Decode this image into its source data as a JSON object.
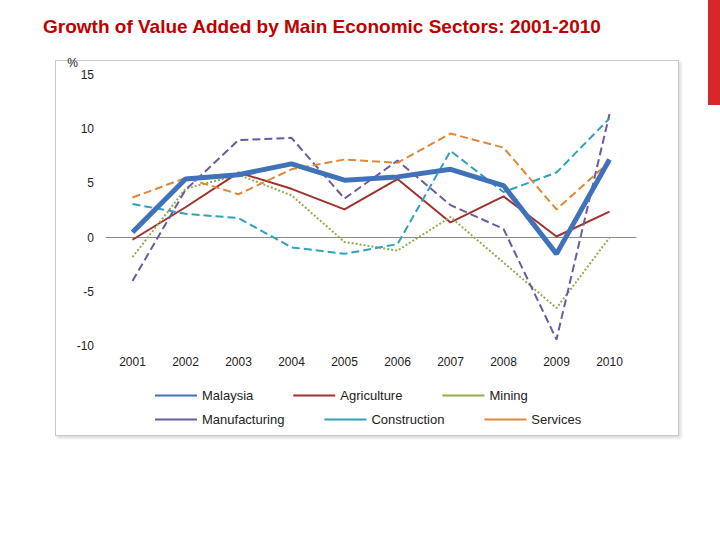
{
  "chart_data": {
    "type": "line",
    "title": "Growth of Value Added by Main Economic Sectors: 2001-2010",
    "ylabel": "%",
    "categories": [
      "2001",
      "2002",
      "2003",
      "2004",
      "2005",
      "2006",
      "2007",
      "2008",
      "2009",
      "2010"
    ],
    "series": [
      {
        "name": "Malaysia",
        "color": "#3f72b8",
        "line_style": "solid",
        "values": [
          0.5,
          5.4,
          5.8,
          6.8,
          5.3,
          5.6,
          6.3,
          4.8,
          -1.5,
          7.2
        ]
      },
      {
        "name": "Agriculture",
        "color": "#a0312d",
        "line_style": "solid",
        "values": [
          -0.2,
          2.8,
          6.0,
          4.5,
          2.6,
          5.4,
          1.4,
          3.8,
          0.1,
          2.4
        ]
      },
      {
        "name": "Mining",
        "color": "#8fad4c",
        "line_style": "dotted",
        "values": [
          -1.8,
          4.5,
          5.8,
          3.9,
          -0.4,
          -1.2,
          1.9,
          -2.3,
          -6.5,
          0.0
        ]
      },
      {
        "name": "Manufacturing",
        "color": "#6c5a9e",
        "line_style": "dashed",
        "values": [
          -4.0,
          4.4,
          9.0,
          9.2,
          3.6,
          7.1,
          3.0,
          0.8,
          -9.4,
          11.4
        ]
      },
      {
        "name": "Construction",
        "color": "#31a0bc",
        "line_style": "dashed",
        "values": [
          3.1,
          2.2,
          1.8,
          -0.9,
          -1.5,
          -0.6,
          8.0,
          4.2,
          6.0,
          11.0
        ]
      },
      {
        "name": "Services",
        "color": "#e0873a",
        "line_style": "dashed",
        "values": [
          3.7,
          5.5,
          4.0,
          6.3,
          7.2,
          6.9,
          9.6,
          8.3,
          2.6,
          7.0
        ]
      }
    ],
    "ylim": [
      -10,
      15
    ],
    "yticks": [
      -10,
      -5,
      0,
      5,
      10,
      15
    ],
    "grid": false,
    "legend": "bottom",
    "marker": "none"
  }
}
